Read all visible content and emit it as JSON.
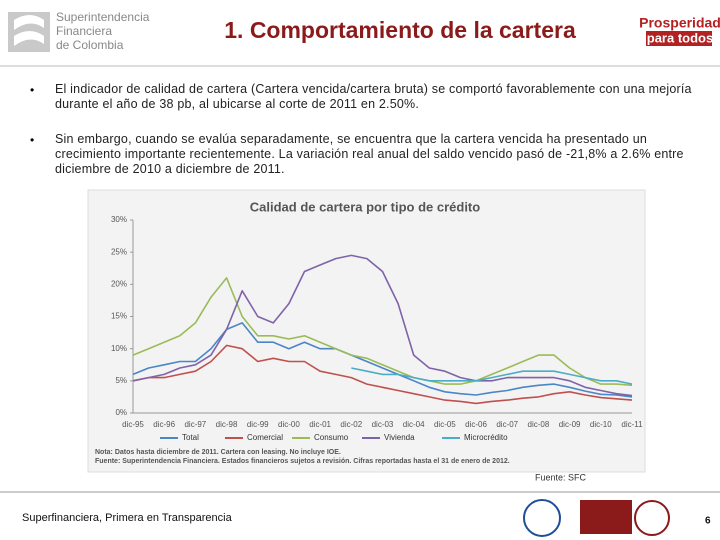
{
  "header": {
    "org_name": [
      "Superintendencia",
      "Financiera",
      "de Colombia"
    ],
    "title": "1. Comportamiento de la cartera",
    "slogan": [
      "Prosperidad",
      "para todos"
    ]
  },
  "bullets": [
    "El indicador de calidad de cartera  (Cartera vencida/cartera bruta)  se comportó favorablemente con una mejoría durante el año de 38 pb, al ubicarse al corte de 2011 en 2.50%.",
    "Sin embargo, cuando se evalúa separadamente, se encuentra que la cartera vencida ha presentado un crecimiento importante recientemente. La variación real anual  del saldo vencido pasó de  -21,8% a 2.6% entre diciembre de 2010 a diciembre de 2011."
  ],
  "chart_data": {
    "type": "line",
    "title": "Calidad de cartera por tipo de crédito",
    "categories": [
      "dic-95",
      null,
      "dic-96",
      null,
      "dic-97",
      null,
      "dic-98",
      null,
      "dic-99",
      null,
      "dic-00",
      null,
      "dic-01",
      null,
      "dic-02",
      null,
      "dic-03",
      null,
      "dic-04",
      null,
      "dic-05",
      null,
      "dic-06",
      null,
      "dic-07",
      null,
      "dic-08",
      null,
      "dic-09",
      null,
      "dic-10",
      null,
      "dic-11"
    ],
    "series": [
      {
        "name": "Total",
        "color": "#4a86c8",
        "values": [
          6,
          7,
          7.5,
          8,
          8,
          10,
          13,
          14,
          11,
          11,
          10,
          11,
          10,
          10,
          9,
          8,
          7,
          6,
          5,
          4,
          3.3,
          3,
          2.8,
          3.2,
          3.5,
          4,
          4.3,
          4.5,
          4,
          3.4,
          2.9,
          2.8,
          2.5
        ]
      },
      {
        "name": "Comercial",
        "color": "#c0504d",
        "values": [
          5,
          5.5,
          5.5,
          6,
          6.5,
          8,
          10.5,
          10,
          8,
          8.5,
          8,
          8,
          6.5,
          6,
          5.5,
          4.5,
          4,
          3.5,
          3,
          2.5,
          2,
          1.8,
          1.5,
          1.8,
          2,
          2.3,
          2.5,
          3,
          3.3,
          2.8,
          2.4,
          2.2,
          2
        ]
      },
      {
        "name": "Consumo",
        "color": "#9bbb59",
        "values": [
          9,
          10,
          11,
          12,
          14,
          18,
          21,
          15,
          12,
          12,
          11.5,
          12,
          11,
          10,
          9,
          8.5,
          7.5,
          6.5,
          5.5,
          5,
          4.5,
          4.5,
          5,
          6,
          7,
          8,
          9,
          9,
          7,
          5.5,
          4.5,
          4.5,
          4.3
        ]
      },
      {
        "name": "Vivienda",
        "color": "#7f63a8",
        "values": [
          5,
          5.5,
          6,
          7,
          7.5,
          9,
          13,
          19,
          15,
          14,
          17,
          22,
          23,
          24,
          24.5,
          24,
          22,
          17,
          9,
          7,
          6.5,
          5.5,
          5,
          5,
          5.5,
          5.5,
          5.5,
          5.5,
          5,
          4,
          3.5,
          3,
          2.7
        ]
      },
      {
        "name": "Microcrédito",
        "color": "#4bacc6",
        "values": [
          null,
          null,
          null,
          null,
          null,
          null,
          null,
          null,
          null,
          null,
          null,
          null,
          null,
          null,
          7,
          6.5,
          6,
          6,
          5.5,
          5,
          5,
          5,
          5,
          5.5,
          6,
          6.5,
          6.5,
          6.5,
          6,
          5.5,
          5,
          5,
          4.5
        ]
      }
    ],
    "ylim": [
      0,
      30
    ],
    "yticks": [
      {
        "value": 0,
        "label": "0%"
      },
      {
        "value": 5,
        "label": "5%"
      },
      {
        "value": 10,
        "label": "10%"
      },
      {
        "value": 15,
        "label": "15%"
      },
      {
        "value": 20,
        "label": "20%"
      },
      {
        "value": 25,
        "label": "25%"
      },
      {
        "value": 30,
        "label": "30%"
      }
    ],
    "grid": false,
    "notes": [
      "Nota: Datos hasta diciembre de 2011. Cartera con leasing. No incluye IOE.",
      "Fuente: Superintendencia Financiera. Estados financieros sujetos a revisión. Cifras reportadas hasta el 31 de enero de 2012."
    ]
  },
  "source": "Fuente: SFC",
  "footer": {
    "motto": "Superfinanciera, Primera en Transparencia",
    "page": "6"
  }
}
